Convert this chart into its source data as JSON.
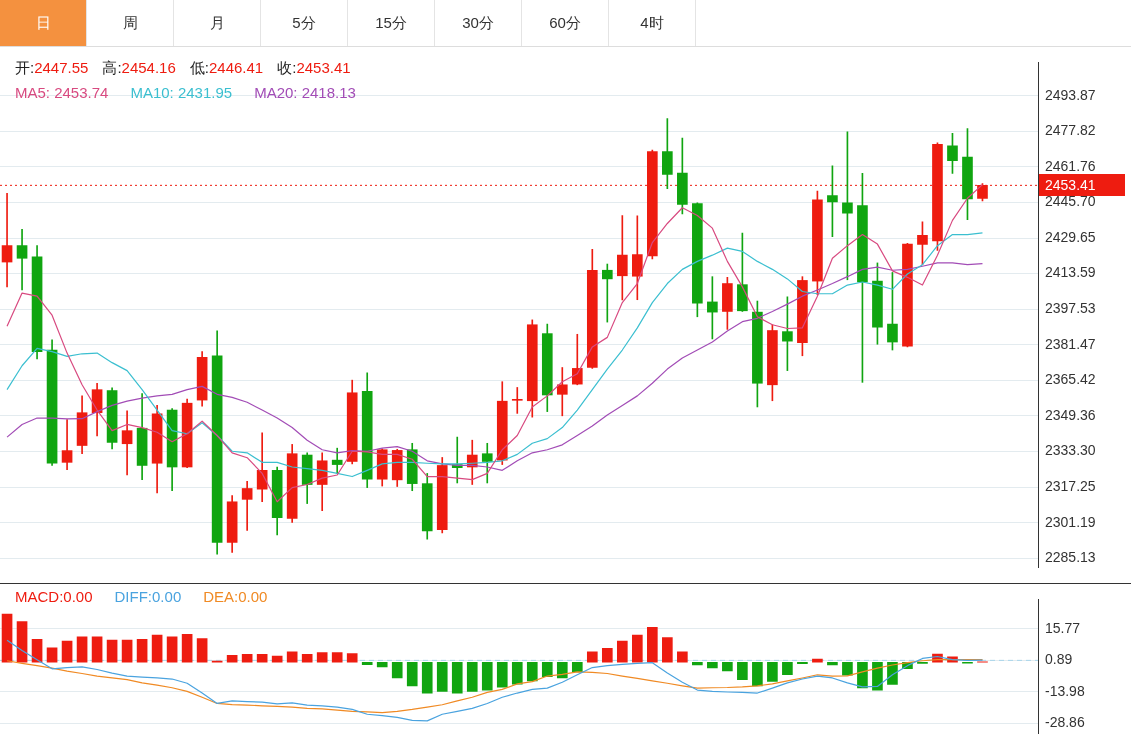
{
  "chart_data": [
    {
      "type": "other",
      "annotations": [
        "日",
        "周",
        "月",
        "5分",
        "15分",
        "30分",
        "60分",
        "4时"
      ]
    },
    {
      "type": "candlestick",
      "categories": [
        null,
        null,
        null,
        null,
        null,
        null,
        null,
        null,
        null,
        null,
        null,
        null,
        null,
        null,
        null,
        null,
        null,
        null,
        null,
        null,
        null,
        null,
        null,
        null,
        null,
        null,
        null,
        null,
        null,
        null,
        null,
        null,
        null,
        null,
        null,
        null,
        null,
        null,
        null,
        null,
        null,
        null,
        null,
        null,
        null,
        null,
        null,
        null,
        null,
        null,
        null,
        null,
        null,
        null,
        null,
        null,
        null,
        null,
        null,
        null,
        null,
        null,
        null,
        null,
        null,
        null
      ],
      "ohlc": [
        [
          2418.8,
          2449.8,
          2407.6,
          2426.2
        ],
        [
          2426.2,
          2433.6,
          2406.2,
          2420.5
        ],
        [
          2421.2,
          2426.2,
          2375.1,
          2378.4
        ],
        [
          2379.1,
          2383.7,
          2327.0,
          2328.0
        ],
        [
          2328.4,
          2347.7,
          2325.1,
          2333.7
        ],
        [
          2336.0,
          2358.4,
          2332.3,
          2350.8
        ],
        [
          2350.8,
          2364.1,
          2340.3,
          2361.2
        ],
        [
          2360.8,
          2362.0,
          2334.5,
          2337.4
        ],
        [
          2336.8,
          2351.7,
          2322.7,
          2342.7
        ],
        [
          2343.8,
          2359.4,
          2320.6,
          2327.0
        ],
        [
          2328.0,
          2354.1,
          2314.6,
          2350.3
        ],
        [
          2352.0,
          2352.7,
          2315.6,
          2326.3
        ],
        [
          2326.3,
          2357.0,
          2326.0,
          2355.1
        ],
        [
          2356.5,
          2378.4,
          2353.7,
          2375.8
        ],
        [
          2376.5,
          2387.7,
          2287.0,
          2292.3
        ],
        [
          2292.3,
          2313.4,
          2287.7,
          2310.6
        ],
        [
          2311.7,
          2319.8,
          2297.7,
          2316.6
        ],
        [
          2316.3,
          2341.7,
          2310.6,
          2324.8
        ],
        [
          2324.8,
          2326.3,
          2295.6,
          2303.4
        ],
        [
          2303.1,
          2336.5,
          2301.3,
          2332.3
        ],
        [
          2331.7,
          2332.7,
          2309.8,
          2318.4
        ],
        [
          2318.4,
          2332.7,
          2306.6,
          2329.1
        ],
        [
          2329.4,
          2334.8,
          2323.4,
          2327.4
        ],
        [
          2328.8,
          2365.5,
          2327.7,
          2359.8
        ],
        [
          2360.5,
          2368.8,
          2317.0,
          2320.8
        ],
        [
          2320.8,
          2334.5,
          2317.7,
          2334.1
        ],
        [
          2320.5,
          2334.3,
          2317.5,
          2333.8
        ],
        [
          2334.1,
          2337.0,
          2315.6,
          2318.8
        ],
        [
          2318.8,
          2323.4,
          2293.7,
          2297.4
        ],
        [
          2298.0,
          2330.6,
          2296.6,
          2327.0
        ],
        [
          2327.4,
          2339.8,
          2319.1,
          2326.0
        ],
        [
          2326.3,
          2338.4,
          2318.4,
          2331.7
        ],
        [
          2332.3,
          2337.0,
          2319.1,
          2328.8
        ],
        [
          2329.4,
          2364.8,
          2327.4,
          2356.0
        ],
        [
          2356.4,
          2362.2,
          2350.5,
          2356.8
        ],
        [
          2356.2,
          2392.7,
          2348.8,
          2390.5
        ],
        [
          2386.5,
          2390.8,
          2351.3,
          2358.8
        ],
        [
          2359.1,
          2371.2,
          2349.4,
          2363.4
        ],
        [
          2363.7,
          2386.2,
          2363.4,
          2370.8
        ],
        [
          2371.2,
          2424.5,
          2370.8,
          2415.1
        ],
        [
          2415.1,
          2417.9,
          2391.7,
          2411.2
        ],
        [
          2412.6,
          2439.8,
          2401.7,
          2421.9
        ],
        [
          2412.4,
          2439.6,
          2401.8,
          2422.2
        ],
        [
          2421.6,
          2469.3,
          2420.2,
          2468.6
        ],
        [
          2468.6,
          2483.6,
          2451.9,
          2458.3
        ],
        [
          2459.0,
          2474.7,
          2440.5,
          2444.8
        ],
        [
          2445.2,
          2445.5,
          2394.1,
          2400.2
        ],
        [
          2400.8,
          2412.2,
          2384.1,
          2396.2
        ],
        [
          2396.5,
          2411.9,
          2388.4,
          2409.1
        ],
        [
          2408.6,
          2431.9,
          2396.5,
          2396.8
        ],
        [
          2396.2,
          2401.2,
          2353.4,
          2364.1
        ],
        [
          2363.4,
          2390.5,
          2356.2,
          2387.9
        ],
        [
          2387.4,
          2403.1,
          2369.8,
          2383.1
        ],
        [
          2382.4,
          2412.2,
          2376.5,
          2410.5
        ],
        [
          2410.2,
          2450.8,
          2404.1,
          2446.9
        ],
        [
          2448.8,
          2462.2,
          2430.2,
          2445.9
        ],
        [
          2445.5,
          2477.6,
          2410.8,
          2440.9
        ],
        [
          2444.3,
          2458.8,
          2364.5,
          2409.8
        ],
        [
          2410.2,
          2418.4,
          2381.7,
          2389.4
        ],
        [
          2390.8,
          2414.1,
          2379.1,
          2382.7
        ],
        [
          2380.8,
          2427.2,
          2380.5,
          2426.9
        ],
        [
          2426.8,
          2436.9,
          2417.6,
          2430.8
        ],
        [
          2428.3,
          2472.6,
          2424.1,
          2471.9
        ],
        [
          2471.2,
          2476.9,
          2458.8,
          2464.5
        ],
        [
          2466.2,
          2479.0,
          2437.9,
          2447.3
        ],
        [
          2447.55,
          2454.16,
          2446.41,
          2453.41
        ]
      ],
      "colors": [
        "#ee1c10",
        "#10a510",
        "#10a510",
        "#10a510",
        "#ee1c10",
        "#ee1c10",
        "#ee1c10",
        "#10a510",
        "#ee1c10",
        "#10a510",
        "#ee1c10",
        "#10a510",
        "#ee1c10",
        "#ee1c10",
        "#10a510",
        "#ee1c10",
        "#ee1c10",
        "#ee1c10",
        "#10a510",
        "#ee1c10",
        "#10a510",
        "#ee1c10",
        "#10a510",
        "#ee1c10",
        "#10a510",
        "#ee1c10",
        "#ee1c10",
        "#10a510",
        "#10a510",
        "#ee1c10",
        "#10a510",
        "#ee1c10",
        "#10a510",
        "#ee1c10",
        "#ee1c10",
        "#ee1c10",
        "#10a510",
        "#ee1c10",
        "#ee1c10",
        "#ee1c10",
        "#10a510",
        "#ee1c10",
        "#ee1c10",
        "#ee1c10",
        "#10a510",
        "#10a510",
        "#10a510",
        "#10a510",
        "#ee1c10",
        "#10a510",
        "#10a510",
        "#ee1c10",
        "#10a510",
        "#ee1c10",
        "#ee1c10",
        "#10a510",
        "#10a510",
        "#10a510",
        "#10a510",
        "#10a510",
        "#ee1c10",
        "#ee1c10",
        "#ee1c10",
        "#10a510",
        "#10a510",
        "#ee1c10"
      ],
      "series": [
        {
          "name": "MA5: 2453.74",
          "type": "line",
          "color": "#d84a80",
          "values": [
            2389.8,
            2404.8,
            2403.4,
            2394.8,
            2377.7,
            2363.4,
            2352.0,
            2342.7,
            2345.5,
            2344.1,
            2342.0,
            2337.7,
            2341.3,
            2347.0,
            2340.5,
            2332.7,
            2330.5,
            2323.4,
            2310.6,
            2317.0,
            2318.4,
            2321.3,
            2322.7,
            2333.4,
            2333.1,
            2332.0,
            2332.0,
            2329.8,
            2322.0,
            2322.0,
            2321.3,
            2320.6,
            2323.4,
            2334.1,
            2340.5,
            2353.4,
            2358.4,
            2364.8,
            2368.4,
            2380.5,
            2384.8,
            2400.5,
            2409.1,
            2427.6,
            2436.2,
            2443.3,
            2439.8,
            2434.1,
            2419.1,
            2407.6,
            2394.1,
            2390.5,
            2388.8,
            2389.1,
            2403.4,
            2420.5,
            2426.2,
            2431.2,
            2426.9,
            2414.8,
            2411.9,
            2408.4,
            2421.9,
            2437.6,
            2447.6,
            2453.74
          ]
        },
        {
          "name": "MA10: 2431.95",
          "type": "line",
          "color": "#3bbfd0",
          "values": [
            2361.2,
            2372.0,
            2379.8,
            2378.4,
            2376.2,
            2377.4,
            2377.7,
            2373.4,
            2369.8,
            2361.2,
            2352.0,
            2342.7,
            2341.3,
            2346.3,
            2340.5,
            2333.4,
            2332.7,
            2328.4,
            2328.4,
            2326.3,
            2325.6,
            2324.8,
            2323.4,
            2322.0,
            2324.8,
            2327.7,
            2328.4,
            2328.4,
            2328.0,
            2327.7,
            2327.7,
            2328.0,
            2328.4,
            2329.1,
            2332.0,
            2337.0,
            2339.1,
            2344.1,
            2352.0,
            2361.2,
            2370.5,
            2379.1,
            2389.1,
            2400.5,
            2409.1,
            2415.5,
            2419.1,
            2421.9,
            2425.1,
            2423.6,
            2419.1,
            2415.5,
            2411.2,
            2405.5,
            2404.5,
            2404.5,
            2408.4,
            2409.8,
            2408.4,
            2406.5,
            2413.4,
            2417.6,
            2426.2,
            2431.2,
            2431.2,
            2431.95
          ]
        },
        {
          "name": "MA20: 2418.13",
          "type": "line",
          "color": "#a24cb6",
          "values": [
            2339.8,
            2345.5,
            2348.4,
            2348.4,
            2348.0,
            2348.1,
            2351.3,
            2354.1,
            2356.0,
            2357.4,
            2358.4,
            2359.1,
            2361.2,
            2362.7,
            2359.1,
            2357.7,
            2355.5,
            2352.0,
            2348.4,
            2344.1,
            2338.4,
            2334.1,
            2332.7,
            2333.7,
            2333.4,
            2334.8,
            2335.5,
            2333.4,
            2329.1,
            2327.7,
            2327.0,
            2327.0,
            2326.3,
            2324.8,
            2329.1,
            2332.7,
            2334.1,
            2336.3,
            2340.5,
            2344.8,
            2349.8,
            2354.1,
            2358.4,
            2364.1,
            2370.5,
            2375.5,
            2379.1,
            2382.7,
            2387.7,
            2391.9,
            2393.4,
            2396.5,
            2399.8,
            2403.4,
            2406.2,
            2409.1,
            2412.2,
            2415.5,
            2416.5,
            2415.1,
            2415.5,
            2416.9,
            2418.4,
            2418.4,
            2417.6,
            2418.13
          ]
        }
      ],
      "ylim": [
        2280.9,
        2508.9
      ],
      "yticks": [
        2493.87,
        2477.82,
        2461.76,
        {
          "value": 2445.7,
          "label": "2445.70"
        },
        2429.65,
        2413.59,
        2397.53,
        2381.47,
        2365.42,
        2349.36,
        {
          "value": 2333.3,
          "label": "2333.30"
        },
        2317.25,
        2301.19,
        2285.13
      ],
      "grid": "y",
      "legend": "top left",
      "marker": "none",
      "annotations": [
        "开:2447.55",
        "高:2454.16",
        "低:2446.41",
        "收:2453.41",
        "2453.41"
      ],
      "ref_lines": [
        {
          "axis": "y",
          "value": 2453.41,
          "color": "#ee1c10",
          "line_style": "dotted"
        }
      ]
    },
    {
      "type": "bar",
      "categories": [
        null,
        null,
        null,
        null,
        null,
        null,
        null,
        null,
        null,
        null,
        null,
        null,
        null,
        null,
        null,
        null,
        null,
        null,
        null,
        null,
        null,
        null,
        null,
        null,
        null,
        null,
        null,
        null,
        null,
        null,
        null,
        null,
        null,
        null,
        null,
        null,
        null,
        null,
        null,
        null,
        null,
        null,
        null,
        null,
        null,
        null,
        null,
        null,
        null,
        null,
        null,
        null,
        null,
        null,
        null,
        null,
        null,
        null,
        null,
        null,
        null,
        null,
        null,
        null,
        null,
        null
      ],
      "series": [
        {
          "name": "MACD:0.00",
          "type": "bar",
          "color": "#ee1c10",
          "colors": [
            "#ee1c10",
            "#ee1c10",
            "#ee1c10",
            "#ee1c10",
            "#ee1c10",
            "#ee1c10",
            "#ee1c10",
            "#ee1c10",
            "#ee1c10",
            "#ee1c10",
            "#ee1c10",
            "#ee1c10",
            "#ee1c10",
            "#ee1c10",
            "#ee1c10",
            "#ee1c10",
            "#ee1c10",
            "#ee1c10",
            "#ee1c10",
            "#ee1c10",
            "#ee1c10",
            "#ee1c10",
            "#ee1c10",
            "#ee1c10",
            "#10a510",
            "#10a510",
            "#10a510",
            "#10a510",
            "#10a510",
            "#10a510",
            "#10a510",
            "#10a510",
            "#10a510",
            "#10a510",
            "#10a510",
            "#10a510",
            "#10a510",
            "#10a510",
            "#10a510",
            "#ee1c10",
            "#ee1c10",
            "#ee1c10",
            "#ee1c10",
            "#ee1c10",
            "#ee1c10",
            "#ee1c10",
            "#10a510",
            "#10a510",
            "#10a510",
            "#10a510",
            "#10a510",
            "#10a510",
            "#10a510",
            "#10a510",
            "#ee1c10",
            "#10a510",
            "#10a510",
            "#10a510",
            "#10a510",
            "#10a510",
            "#10a510",
            "#10a510",
            "#ee1c10",
            "#ee1c10",
            "#10a510",
            "#ee1c10"
          ],
          "values": [
            22.7,
            19.1,
            10.8,
            6.8,
            10.0,
            12.0,
            12.0,
            10.4,
            10.4,
            10.8,
            12.8,
            12.0,
            13.2,
            11.2,
            0.5,
            3.3,
            3.7,
            3.7,
            2.9,
            4.9,
            3.7,
            4.5,
            4.5,
            4.1,
            -1.1,
            -2.2,
            -7.4,
            -11.1,
            -14.6,
            -13.7,
            -14.6,
            -13.7,
            -13.1,
            -11.7,
            -10.3,
            -8.8,
            -6.8,
            -7.4,
            -4.5,
            4.9,
            6.6,
            10.0,
            12.8,
            16.5,
            11.6,
            4.9,
            -1.3,
            -2.7,
            -4.1,
            -8.2,
            -11.2,
            -9.0,
            -5.9,
            -0.7,
            1.5,
            -1.3,
            -6.1,
            -12.1,
            -13.2,
            -10.4,
            -3.0,
            -0.5,
            3.8,
            2.5,
            -0.4,
            0.2
          ]
        },
        {
          "name": "DIFF:0.00",
          "type": "line",
          "color": "#4aa3df",
          "values": [
            10.4,
            5.5,
            1.2,
            -3.1,
            -2.5,
            -2.2,
            -3.4,
            -5.1,
            -6.5,
            -7.0,
            -7.4,
            -7.9,
            -9.9,
            -14.5,
            -19.4,
            -18.2,
            -18.5,
            -18.8,
            -19.6,
            -19.1,
            -20.2,
            -20.5,
            -21.1,
            -22.2,
            -24.5,
            -25.1,
            -26.0,
            -27.4,
            -27.6,
            -24.5,
            -23.1,
            -21.7,
            -19.4,
            -16.5,
            -14.5,
            -12.8,
            -12.2,
            -9.4,
            -5.9,
            -2.5,
            -1.6,
            -1.0,
            -0.5,
            -0.2,
            -5.1,
            -9.4,
            -13.1,
            -13.7,
            -14.0,
            -14.2,
            -14.5,
            -12.2,
            -9.7,
            -7.9,
            -6.5,
            -7.4,
            -9.7,
            -11.6,
            -11.4,
            -5.9,
            -1.6,
            1.8,
            2.7,
            1.2,
            0.9,
            1.0
          ]
        },
        {
          "name": "DEA:0.00",
          "type": "line",
          "color": "#f08a24",
          "values": [
            0.7,
            -0.5,
            -1.6,
            -2.8,
            -4.2,
            -5.3,
            -6.5,
            -7.4,
            -8.2,
            -9.7,
            -10.8,
            -12.0,
            -13.7,
            -16.5,
            -19.4,
            -20.0,
            -20.2,
            -20.5,
            -20.8,
            -21.1,
            -21.7,
            -22.0,
            -22.5,
            -23.1,
            -23.4,
            -23.7,
            -23.1,
            -22.2,
            -21.1,
            -20.0,
            -18.2,
            -16.5,
            -14.2,
            -12.8,
            -10.2,
            -9.1,
            -6.5,
            -5.7,
            -4.5,
            -4.8,
            -5.3,
            -6.5,
            -7.6,
            -8.8,
            -9.9,
            -11.1,
            -12.2,
            -12.0,
            -11.9,
            -11.6,
            -11.1,
            -10.2,
            -8.8,
            -7.4,
            -5.9,
            -6.5,
            -6.4,
            -4.5,
            -2.8,
            -1.3,
            -0.2,
            0.7,
            1.2,
            1.2,
            1.2,
            1.2
          ]
        }
      ],
      "ylim": [
        -33.6,
        29.6
      ],
      "yticks": [
        15.77,
        0.89,
        -13.98,
        -28.86
      ],
      "grid": "y",
      "legend": "top left",
      "marker": "none",
      "ref_lines": [
        {
          "axis": "y",
          "value": 0.89,
          "color": "#a8d4ea",
          "line_style": "dashed"
        }
      ]
    }
  ]
}
